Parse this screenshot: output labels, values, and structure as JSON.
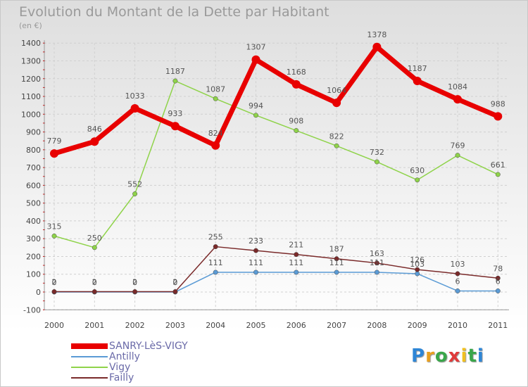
{
  "chart_data": {
    "type": "line",
    "title": "Evolution du Montant de la Dette par Habitant",
    "subtitle": "(en €)",
    "categories": [
      "2000",
      "2001",
      "2002",
      "2003",
      "2004",
      "2005",
      "2006",
      "2007",
      "2008",
      "2009",
      "2010",
      "2011"
    ],
    "ylim": [
      -100,
      1400
    ],
    "yticks": [
      -100,
      0,
      100,
      200,
      300,
      400,
      500,
      600,
      700,
      800,
      900,
      1000,
      1100,
      1200,
      1300,
      1400
    ],
    "grid": true,
    "legend_position": "bottom-left",
    "series": [
      {
        "name": "SANRY-LèS-VIGY",
        "color": "#e80000",
        "values": [
          779,
          846,
          1033,
          933,
          824,
          1307,
          1168,
          1064,
          1378,
          1187,
          1084,
          988
        ]
      },
      {
        "name": "Antilly",
        "color": "#5b9bd5",
        "values": [
          0,
          0,
          0,
          0,
          111,
          111,
          111,
          111,
          111,
          103,
          6,
          6
        ]
      },
      {
        "name": "Vigy",
        "color": "#8fd34a",
        "values": [
          315,
          250,
          552,
          1187,
          1087,
          994,
          908,
          822,
          732,
          630,
          769,
          661
        ]
      },
      {
        "name": "Failly",
        "color": "#7a2a2a",
        "values": [
          2,
          2,
          2,
          2,
          255,
          233,
          211,
          187,
          163,
          126,
          103,
          78
        ]
      }
    ]
  },
  "logo": {
    "letters": [
      "P",
      "r",
      "o",
      "x",
      "i",
      "t",
      "i"
    ],
    "colors": [
      "#2e86d6",
      "#e8a020",
      "#3aa64a",
      "#e03a3a",
      "#f0c020",
      "#3aa64a",
      "#2e86d6"
    ]
  }
}
